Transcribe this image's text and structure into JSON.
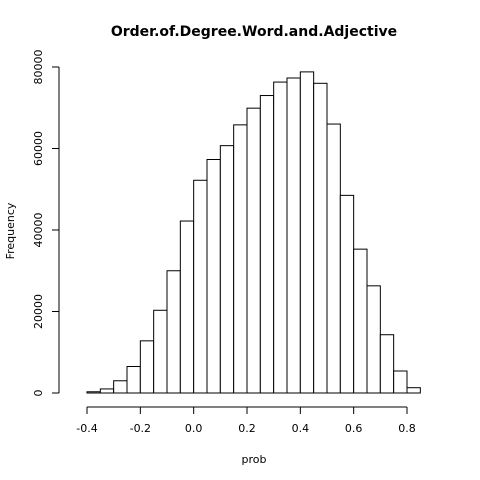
{
  "chart_data": {
    "type": "bar",
    "title": "Order.of.Degree.Word.and.Adjective",
    "xlabel": "prob",
    "ylabel": "Frequency",
    "xlim": [
      -0.45,
      0.9
    ],
    "ylim": [
      0,
      82000
    ],
    "grid": false,
    "x_ticks": [
      {
        "value": -0.4,
        "label": "-0.4"
      },
      {
        "value": -0.2,
        "label": "-0.2"
      },
      {
        "value": 0.0,
        "label": "0.0"
      },
      {
        "value": 0.2,
        "label": "0.2"
      },
      {
        "value": 0.4,
        "label": "0.4"
      },
      {
        "value": 0.6,
        "label": "0.6"
      },
      {
        "value": 0.8,
        "label": "0.8"
      }
    ],
    "y_ticks": [
      {
        "value": 0,
        "label": "0"
      },
      {
        "value": 20000,
        "label": "20000"
      },
      {
        "value": 40000,
        "label": "40000"
      },
      {
        "value": 60000,
        "label": "60000"
      },
      {
        "value": 80000,
        "label": "80000"
      }
    ],
    "bins": [
      {
        "x0": -0.4,
        "x1": -0.35,
        "count": 300
      },
      {
        "x0": -0.35,
        "x1": -0.3,
        "count": 1000
      },
      {
        "x0": -0.3,
        "x1": -0.25,
        "count": 3000
      },
      {
        "x0": -0.25,
        "x1": -0.2,
        "count": 6500
      },
      {
        "x0": -0.2,
        "x1": -0.15,
        "count": 12800
      },
      {
        "x0": -0.15,
        "x1": -0.1,
        "count": 20300
      },
      {
        "x0": -0.1,
        "x1": -0.05,
        "count": 30000
      },
      {
        "x0": -0.05,
        "x1": 0.0,
        "count": 42200
      },
      {
        "x0": 0.0,
        "x1": 0.05,
        "count": 52200
      },
      {
        "x0": 0.05,
        "x1": 0.1,
        "count": 57300
      },
      {
        "x0": 0.1,
        "x1": 0.15,
        "count": 60700
      },
      {
        "x0": 0.15,
        "x1": 0.2,
        "count": 65800
      },
      {
        "x0": 0.2,
        "x1": 0.25,
        "count": 69900
      },
      {
        "x0": 0.25,
        "x1": 0.3,
        "count": 73000
      },
      {
        "x0": 0.3,
        "x1": 0.35,
        "count": 76300
      },
      {
        "x0": 0.35,
        "x1": 0.4,
        "count": 77300
      },
      {
        "x0": 0.4,
        "x1": 0.45,
        "count": 78800
      },
      {
        "x0": 0.45,
        "x1": 0.5,
        "count": 76000
      },
      {
        "x0": 0.5,
        "x1": 0.55,
        "count": 66000
      },
      {
        "x0": 0.55,
        "x1": 0.6,
        "count": 48500
      },
      {
        "x0": 0.6,
        "x1": 0.65,
        "count": 35300
      },
      {
        "x0": 0.65,
        "x1": 0.7,
        "count": 26300
      },
      {
        "x0": 0.7,
        "x1": 0.75,
        "count": 14300
      },
      {
        "x0": 0.75,
        "x1": 0.8,
        "count": 5400
      },
      {
        "x0": 0.8,
        "x1": 0.85,
        "count": 1300
      }
    ],
    "colors": {
      "bar_fill": "#ffffff",
      "bar_stroke": "#000000",
      "axis": "#000000"
    }
  }
}
